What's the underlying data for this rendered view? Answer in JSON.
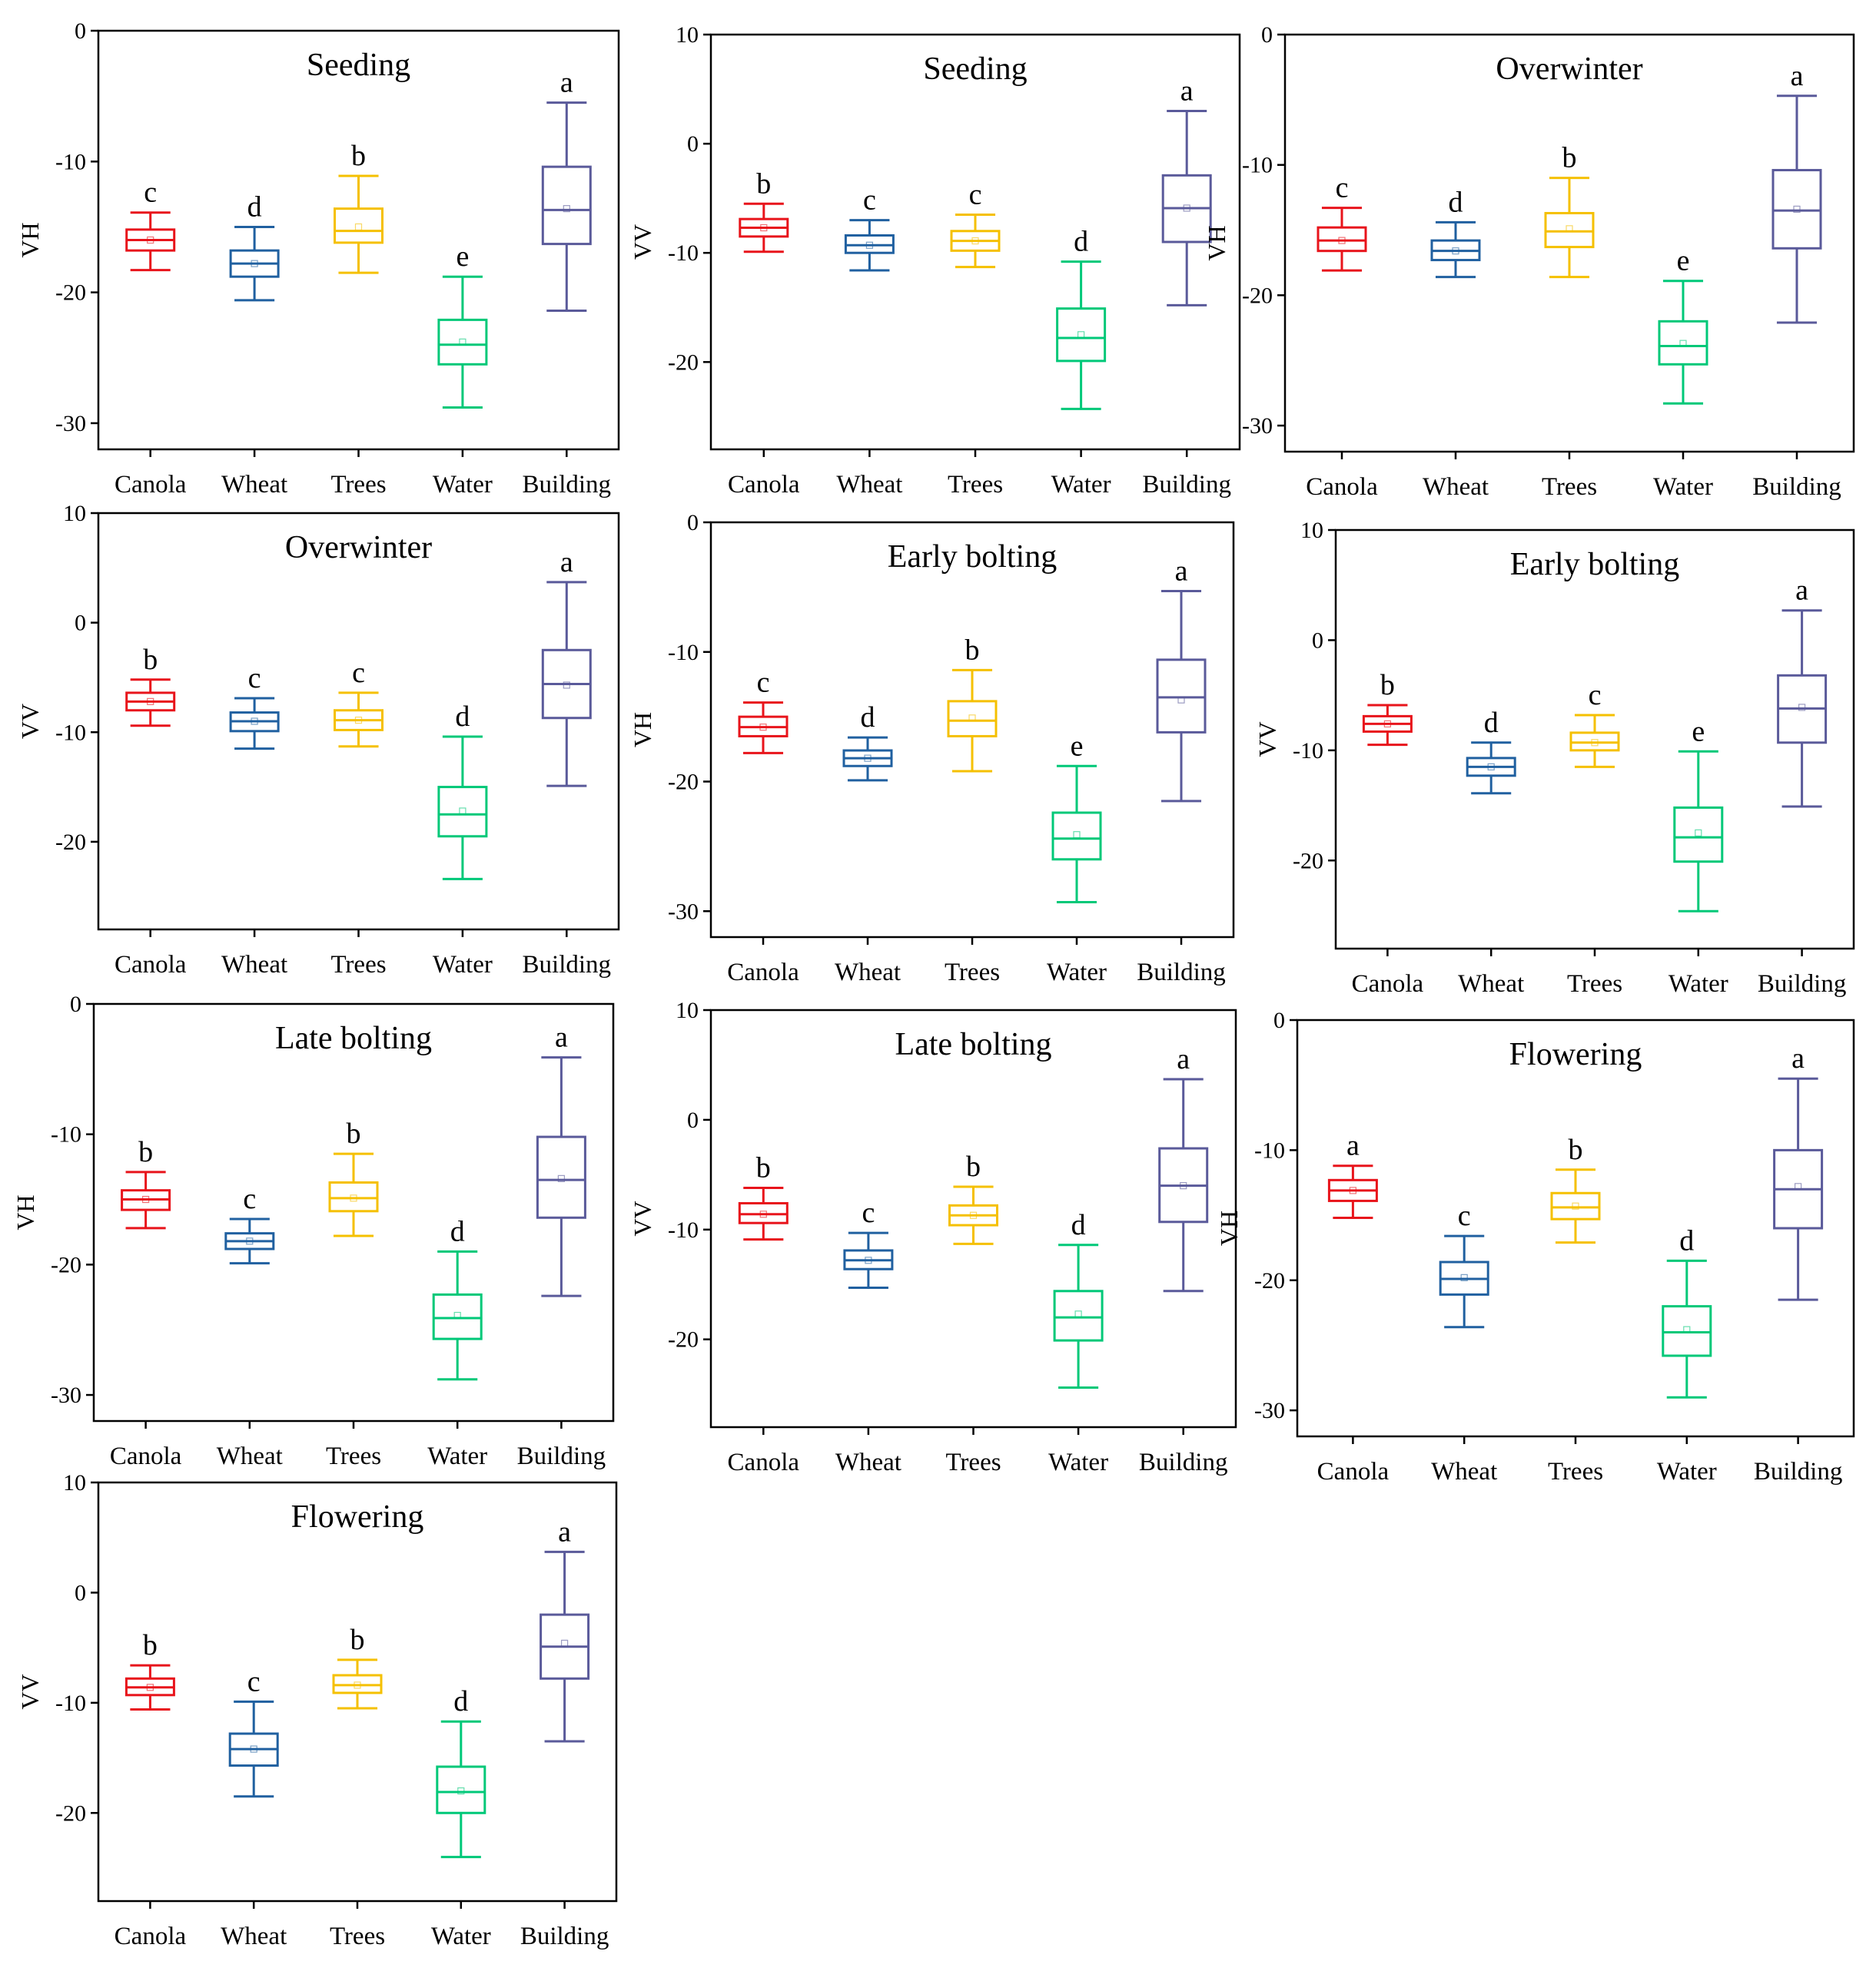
{
  "figure": {
    "colors": {
      "Canola": "#e8141b",
      "Wheat": "#2060a0",
      "Trees": "#f5c000",
      "Water": "#00c878",
      "Building": "#5a5a9a"
    }
  },
  "chart_data": [
    {
      "type": "box",
      "title": "Seeding",
      "ylabel": "VH",
      "ylim": [
        -32,
        0
      ],
      "yticks": [
        "0",
        "-10",
        "-20",
        "-30"
      ],
      "ytick_values": [
        0,
        -10,
        -20,
        -30
      ],
      "categories": [
        "Canola",
        "Wheat",
        "Trees",
        "Water",
        "Building"
      ],
      "boxes": [
        {
          "whisker_low": -18.3,
          "q1": -16.8,
          "median": -16.0,
          "mean": -16.0,
          "q3": -15.2,
          "whisker_high": -13.9
        },
        {
          "whisker_low": -20.6,
          "q1": -18.8,
          "median": -17.8,
          "mean": -17.8,
          "q3": -16.8,
          "whisker_high": -15.0
        },
        {
          "whisker_low": -18.5,
          "q1": -16.2,
          "median": -15.3,
          "mean": -15.0,
          "q3": -13.6,
          "whisker_high": -11.1
        },
        {
          "whisker_low": -28.8,
          "q1": -25.5,
          "median": -24.0,
          "mean": -23.8,
          "q3": -22.1,
          "whisker_high": -18.8
        },
        {
          "whisker_low": -21.4,
          "q1": -16.3,
          "median": -13.7,
          "mean": -13.6,
          "q3": -10.4,
          "whisker_high": -5.5
        }
      ],
      "letters": [
        "c",
        "d",
        "b",
        "e",
        "a"
      ]
    },
    {
      "type": "box",
      "title": "Seeding",
      "ylabel": "VV",
      "ylim": [
        -28,
        10
      ],
      "yticks": [
        "10",
        "0",
        "-10",
        "-20"
      ],
      "ytick_values": [
        10,
        0,
        -10,
        -20
      ],
      "categories": [
        "Canola",
        "Wheat",
        "Trees",
        "Water",
        "Building"
      ],
      "boxes": [
        {
          "whisker_low": -9.9,
          "q1": -8.5,
          "median": -7.7,
          "mean": -7.7,
          "q3": -6.9,
          "whisker_high": -5.5
        },
        {
          "whisker_low": -11.6,
          "q1": -10.0,
          "median": -9.3,
          "mean": -9.3,
          "q3": -8.4,
          "whisker_high": -7.0
        },
        {
          "whisker_low": -11.3,
          "q1": -9.8,
          "median": -8.9,
          "mean": -8.9,
          "q3": -8.0,
          "whisker_high": -6.5
        },
        {
          "whisker_low": -24.3,
          "q1": -19.9,
          "median": -17.8,
          "mean": -17.5,
          "q3": -15.1,
          "whisker_high": -10.8
        },
        {
          "whisker_low": -14.8,
          "q1": -9.0,
          "median": -5.9,
          "mean": -5.9,
          "q3": -2.9,
          "whisker_high": 3.0
        }
      ],
      "letters": [
        "b",
        "c",
        "c",
        "d",
        "a"
      ]
    },
    {
      "type": "box",
      "title": "Overwinter",
      "ylabel": "VH",
      "ylim": [
        -32,
        0
      ],
      "yticks": [
        "0",
        "-10",
        "-20",
        "-30"
      ],
      "ytick_values": [
        0,
        -10,
        -20,
        -30
      ],
      "categories": [
        "Canola",
        "Wheat",
        "Trees",
        "Water",
        "Building"
      ],
      "boxes": [
        {
          "whisker_low": -18.1,
          "q1": -16.6,
          "median": -15.8,
          "mean": -15.8,
          "q3": -14.8,
          "whisker_high": -13.3
        },
        {
          "whisker_low": -18.6,
          "q1": -17.3,
          "median": -16.6,
          "mean": -16.6,
          "q3": -15.8,
          "whisker_high": -14.4
        },
        {
          "whisker_low": -18.6,
          "q1": -16.3,
          "median": -15.1,
          "mean": -14.9,
          "q3": -13.7,
          "whisker_high": -11.0
        },
        {
          "whisker_low": -28.3,
          "q1": -25.3,
          "median": -23.9,
          "mean": -23.7,
          "q3": -22.0,
          "whisker_high": -18.9
        },
        {
          "whisker_low": -22.1,
          "q1": -16.4,
          "median": -13.5,
          "mean": -13.4,
          "q3": -10.4,
          "whisker_high": -4.7
        }
      ],
      "letters": [
        "c",
        "d",
        "b",
        "e",
        "a"
      ]
    },
    {
      "type": "box",
      "title": "Overwinter",
      "ylabel": "VV",
      "ylim": [
        -28,
        10
      ],
      "yticks": [
        "10",
        "0",
        "-10",
        "-20"
      ],
      "ytick_values": [
        10,
        0,
        -10,
        -20
      ],
      "categories": [
        "Canola",
        "Wheat",
        "Trees",
        "Water",
        "Building"
      ],
      "boxes": [
        {
          "whisker_low": -9.4,
          "q1": -8.0,
          "median": -7.2,
          "mean": -7.2,
          "q3": -6.4,
          "whisker_high": -5.2
        },
        {
          "whisker_low": -11.5,
          "q1": -9.9,
          "median": -9.0,
          "mean": -9.0,
          "q3": -8.2,
          "whisker_high": -6.9
        },
        {
          "whisker_low": -11.3,
          "q1": -9.8,
          "median": -8.9,
          "mean": -8.9,
          "q3": -8.0,
          "whisker_high": -6.4
        },
        {
          "whisker_low": -23.4,
          "q1": -19.5,
          "median": -17.5,
          "mean": -17.2,
          "q3": -15.0,
          "whisker_high": -10.4
        },
        {
          "whisker_low": -14.9,
          "q1": -8.7,
          "median": -5.6,
          "mean": -5.7,
          "q3": -2.5,
          "whisker_high": 3.7
        }
      ],
      "letters": [
        "b",
        "c",
        "c",
        "d",
        "a"
      ]
    },
    {
      "type": "box",
      "title": "Early bolting",
      "ylabel": "VH",
      "ylim": [
        -32,
        0
      ],
      "yticks": [
        "0",
        "-10",
        "-20",
        "-30"
      ],
      "ytick_values": [
        0,
        -10,
        -20,
        -30
      ],
      "categories": [
        "Canola",
        "Wheat",
        "Trees",
        "Water",
        "Building"
      ],
      "boxes": [
        {
          "whisker_low": -17.8,
          "q1": -16.5,
          "median": -15.8,
          "mean": -15.8,
          "q3": -15.0,
          "whisker_high": -13.9
        },
        {
          "whisker_low": -19.9,
          "q1": -18.8,
          "median": -18.2,
          "mean": -18.2,
          "q3": -17.6,
          "whisker_high": -16.6
        },
        {
          "whisker_low": -19.2,
          "q1": -16.5,
          "median": -15.3,
          "mean": -15.1,
          "q3": -13.8,
          "whisker_high": -11.4
        },
        {
          "whisker_low": -29.3,
          "q1": -26.0,
          "median": -24.4,
          "mean": -24.1,
          "q3": -22.4,
          "whisker_high": -18.8
        },
        {
          "whisker_low": -21.5,
          "q1": -16.2,
          "median": -13.5,
          "mean": -13.7,
          "q3": -10.6,
          "whisker_high": -5.3
        }
      ],
      "letters": [
        "c",
        "d",
        "b",
        "e",
        "a"
      ]
    },
    {
      "type": "box",
      "title": "Early bolting",
      "ylabel": "VV",
      "ylim": [
        -28,
        10
      ],
      "yticks": [
        "10",
        "0",
        "-10",
        "-20"
      ],
      "ytick_values": [
        10,
        0,
        -10,
        -20
      ],
      "categories": [
        "Canola",
        "Wheat",
        "Trees",
        "Water",
        "Building"
      ],
      "boxes": [
        {
          "whisker_low": -9.5,
          "q1": -8.3,
          "median": -7.6,
          "mean": -7.6,
          "q3": -6.9,
          "whisker_high": -5.9
        },
        {
          "whisker_low": -13.9,
          "q1": -12.3,
          "median": -11.5,
          "mean": -11.5,
          "q3": -10.7,
          "whisker_high": -9.3
        },
        {
          "whisker_low": -11.5,
          "q1": -10.0,
          "median": -9.3,
          "mean": -9.3,
          "q3": -8.4,
          "whisker_high": -6.8
        },
        {
          "whisker_low": -24.6,
          "q1": -20.1,
          "median": -17.9,
          "mean": -17.5,
          "q3": -15.2,
          "whisker_high": -10.1
        },
        {
          "whisker_low": -15.1,
          "q1": -9.3,
          "median": -6.2,
          "mean": -6.1,
          "q3": -3.2,
          "whisker_high": 2.7
        }
      ],
      "letters": [
        "b",
        "d",
        "c",
        "e",
        "a"
      ]
    },
    {
      "type": "box",
      "title": "Late bolting",
      "ylabel": "VH",
      "ylim": [
        -32,
        0
      ],
      "yticks": [
        "0",
        "-10",
        "-20",
        "-30"
      ],
      "ytick_values": [
        0,
        -10,
        -20,
        -30
      ],
      "categories": [
        "Canola",
        "Wheat",
        "Trees",
        "Water",
        "Building"
      ],
      "boxes": [
        {
          "whisker_low": -17.2,
          "q1": -15.8,
          "median": -15.0,
          "mean": -15.0,
          "q3": -14.3,
          "whisker_high": -12.9
        },
        {
          "whisker_low": -19.9,
          "q1": -18.8,
          "median": -18.2,
          "mean": -18.2,
          "q3": -17.6,
          "whisker_high": -16.5
        },
        {
          "whisker_low": -17.8,
          "q1": -15.9,
          "median": -14.9,
          "mean": -14.9,
          "q3": -13.7,
          "whisker_high": -11.5
        },
        {
          "whisker_low": -28.8,
          "q1": -25.7,
          "median": -24.1,
          "mean": -23.9,
          "q3": -22.3,
          "whisker_high": -19.0
        },
        {
          "whisker_low": -22.4,
          "q1": -16.4,
          "median": -13.5,
          "mean": -13.4,
          "q3": -10.2,
          "whisker_high": -4.1
        }
      ],
      "letters": [
        "b",
        "c",
        "b",
        "d",
        "a"
      ]
    },
    {
      "type": "box",
      "title": "Late bolting",
      "ylabel": "VV",
      "ylim": [
        -28,
        10
      ],
      "yticks": [
        "10",
        "0",
        "-10",
        "-20"
      ],
      "ytick_values": [
        10,
        0,
        -10,
        -20
      ],
      "categories": [
        "Canola",
        "Wheat",
        "Trees",
        "Water",
        "Building"
      ],
      "boxes": [
        {
          "whisker_low": -10.9,
          "q1": -9.4,
          "median": -8.6,
          "mean": -8.6,
          "q3": -7.6,
          "whisker_high": -6.2
        },
        {
          "whisker_low": -15.3,
          "q1": -13.6,
          "median": -12.8,
          "mean": -12.8,
          "q3": -11.9,
          "whisker_high": -10.3
        },
        {
          "whisker_low": -11.3,
          "q1": -9.6,
          "median": -8.7,
          "mean": -8.7,
          "q3": -7.8,
          "whisker_high": -6.1
        },
        {
          "whisker_low": -24.4,
          "q1": -20.1,
          "median": -18.0,
          "mean": -17.7,
          "q3": -15.6,
          "whisker_high": -11.4
        },
        {
          "whisker_low": -15.6,
          "q1": -9.3,
          "median": -6.0,
          "mean": -6.0,
          "q3": -2.6,
          "whisker_high": 3.7
        }
      ],
      "letters": [
        "b",
        "c",
        "b",
        "d",
        "a"
      ]
    },
    {
      "type": "box",
      "title": "Flowering",
      "ylabel": "VH",
      "ylim": [
        -32,
        0
      ],
      "yticks": [
        "0",
        "-10",
        "-20",
        "-30"
      ],
      "ytick_values": [
        0,
        -10,
        -20,
        -30
      ],
      "categories": [
        "Canola",
        "Wheat",
        "Trees",
        "Water",
        "Building"
      ],
      "boxes": [
        {
          "whisker_low": -15.2,
          "q1": -13.9,
          "median": -13.1,
          "mean": -13.1,
          "q3": -12.3,
          "whisker_high": -11.2
        },
        {
          "whisker_low": -23.6,
          "q1": -21.1,
          "median": -19.9,
          "mean": -19.8,
          "q3": -18.6,
          "whisker_high": -16.6
        },
        {
          "whisker_low": -17.1,
          "q1": -15.3,
          "median": -14.4,
          "mean": -14.3,
          "q3": -13.3,
          "whisker_high": -11.5
        },
        {
          "whisker_low": -29.0,
          "q1": -25.8,
          "median": -24.0,
          "mean": -23.8,
          "q3": -22.0,
          "whisker_high": -18.5
        },
        {
          "whisker_low": -21.5,
          "q1": -16.0,
          "median": -13.0,
          "mean": -12.8,
          "q3": -10.0,
          "whisker_high": -4.5
        }
      ],
      "letters": [
        "a",
        "c",
        "b",
        "d",
        "a"
      ]
    },
    {
      "type": "box",
      "title": "Flowering",
      "ylabel": "VV",
      "ylim": [
        -28,
        10
      ],
      "yticks": [
        "10",
        "0",
        "-10",
        "-20"
      ],
      "ytick_values": [
        10,
        0,
        -10,
        -20
      ],
      "categories": [
        "Canola",
        "Wheat",
        "Trees",
        "Water",
        "Building"
      ],
      "boxes": [
        {
          "whisker_low": -10.6,
          "q1": -9.3,
          "median": -8.6,
          "mean": -8.6,
          "q3": -7.8,
          "whisker_high": -6.6
        },
        {
          "whisker_low": -18.5,
          "q1": -15.7,
          "median": -14.2,
          "mean": -14.2,
          "q3": -12.8,
          "whisker_high": -9.9
        },
        {
          "whisker_low": -10.5,
          "q1": -9.1,
          "median": -8.4,
          "mean": -8.4,
          "q3": -7.5,
          "whisker_high": -6.1
        },
        {
          "whisker_low": -24.0,
          "q1": -20.0,
          "median": -18.1,
          "mean": -18.0,
          "q3": -15.8,
          "whisker_high": -11.7
        },
        {
          "whisker_low": -13.5,
          "q1": -7.8,
          "median": -4.9,
          "mean": -4.6,
          "q3": -2.0,
          "whisker_high": 3.7
        }
      ],
      "letters": [
        "b",
        "c",
        "b",
        "d",
        "a"
      ]
    }
  ]
}
